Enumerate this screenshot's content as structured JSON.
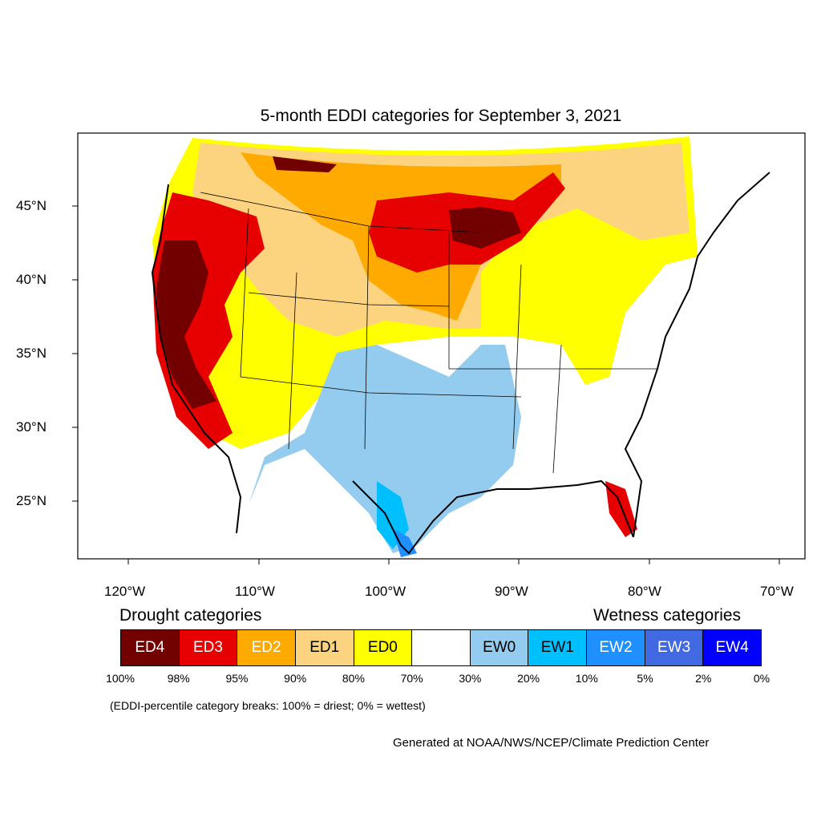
{
  "title": "5-month EDDI categories for September 3, 2021",
  "axes": {
    "y_labels": [
      "45°N",
      "40°N",
      "35°N",
      "30°N",
      "25°N"
    ],
    "x_labels": [
      "120°W",
      "110°W",
      "100°W",
      "90°W",
      "80°W",
      "70°W"
    ]
  },
  "legend": {
    "drought_heading": "Drought categories",
    "wetness_heading": "Wetness categories",
    "categories": [
      {
        "label": "ED4",
        "color": "#730000",
        "text_color": "#ffffff"
      },
      {
        "label": "ED3",
        "color": "#e60000",
        "text_color": "#ffffff"
      },
      {
        "label": "ED2",
        "color": "#ffaa00",
        "text_color": "#ffffff"
      },
      {
        "label": "ED1",
        "color": "#fcd37f",
        "text_color": "#000000"
      },
      {
        "label": "ED0",
        "color": "#ffff00",
        "text_color": "#000000"
      },
      {
        "label": "",
        "color": "#ffffff",
        "text_color": "#000000"
      },
      {
        "label": "EW0",
        "color": "#94ccef",
        "text_color": "#000000"
      },
      {
        "label": "EW1",
        "color": "#00bfff",
        "text_color": "#000000"
      },
      {
        "label": "EW2",
        "color": "#1e90ff",
        "text_color": "#ffffff"
      },
      {
        "label": "EW3",
        "color": "#4169e1",
        "text_color": "#ffffff"
      },
      {
        "label": "EW4",
        "color": "#0000ff",
        "text_color": "#ffffff"
      }
    ],
    "breaks": [
      "100%",
      "98%",
      "95%",
      "90%",
      "80%",
      "70%",
      "30%",
      "20%",
      "10%",
      "5%",
      "2%",
      "0%"
    ]
  },
  "note": "(EDDI-percentile category breaks: 100% = driest; 0% = wettest)",
  "credit": "Generated at NOAA/NWS/NCEP/Climate Prediction Center"
}
